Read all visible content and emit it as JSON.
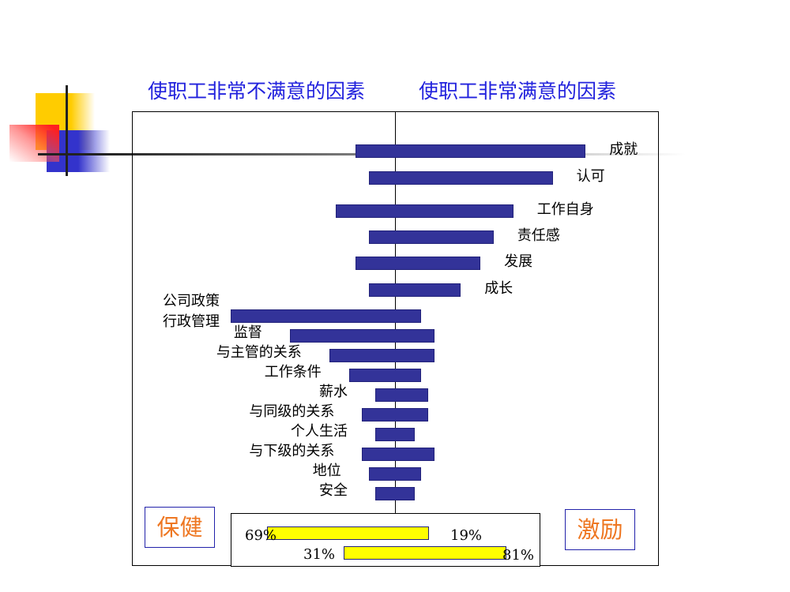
{
  "titles": {
    "left": "使职工非常不满意的因素",
    "right": "使职工非常满意的因素"
  },
  "colors": {
    "bar": "#333399",
    "summary_bar": "#ffff00",
    "title": "#2222dd",
    "tag": "#ee7722"
  },
  "chart_data": {
    "type": "bar",
    "orientation": "horizontal-diverging",
    "note_units": "relative frequency (%), left = dissatisfaction, right = satisfaction",
    "motivators": [
      {
        "label": "成就",
        "left": 12,
        "right": 58
      },
      {
        "label": "认可",
        "left": 8,
        "right": 48
      },
      {
        "label": "工作自身",
        "left": 18,
        "right": 36
      },
      {
        "label": "责任感",
        "left": 8,
        "right": 30
      },
      {
        "label": "发展",
        "left": 12,
        "right": 26
      },
      {
        "label": "成长",
        "left": 8,
        "right": 20
      }
    ],
    "hygiene": [
      {
        "label": "公司政策\n行政管理",
        "left": 50,
        "right": 8
      },
      {
        "label": "监督",
        "left": 32,
        "right": 12
      },
      {
        "label": "与主管的关系",
        "left": 20,
        "right": 12
      },
      {
        "label": "工作条件",
        "left": 14,
        "right": 8
      },
      {
        "label": "薪水",
        "left": 6,
        "right": 10
      },
      {
        "label": "与同级的关系",
        "left": 10,
        "right": 10
      },
      {
        "label": "个人生活",
        "left": 6,
        "right": 6
      },
      {
        "label": "与下级的关系",
        "left": 10,
        "right": 12
      },
      {
        "label": "地位",
        "left": 8,
        "right": 8
      },
      {
        "label": "安全",
        "left": 6,
        "right": 6
      }
    ]
  },
  "tags": {
    "hygiene": "保健",
    "motivator": "激励"
  },
  "summary": {
    "hygiene": {
      "left_label": "69%",
      "right_label": "19%",
      "left": 30,
      "right": 8
    },
    "motivator": {
      "left_label": "31%",
      "right_label": "81%",
      "left": 12,
      "right": 26
    }
  }
}
